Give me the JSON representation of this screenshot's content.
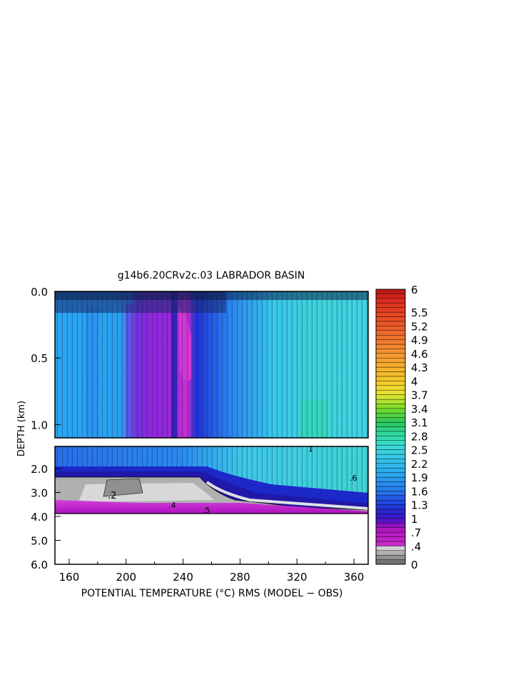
{
  "chart_data": {
    "type": "heatmap",
    "title": "g14b6.20CRv2c.03 LABRADOR BASIN",
    "xlabel": "POTENTIAL TEMPERATURE (°C) RMS (MODEL − OBS)",
    "ylabel": "DEPTH (km)",
    "x_range": [
      150,
      370
    ],
    "x_ticks": [
      "160",
      "200",
      "240",
      "280",
      "320",
      "360"
    ],
    "y_ticks_upper": [
      "0.0",
      "0.5",
      "1.0"
    ],
    "y_ticks_lower": [
      "2.0",
      "3.0",
      "4.0",
      "5.0",
      "6.0"
    ],
    "y_range_upper_km": [
      0.0,
      1.1
    ],
    "y_range_lower_km": [
      1.1,
      6.0
    ],
    "data_bottom_km": 3.9,
    "colorbar": {
      "min": 0,
      "max": 6,
      "labels": [
        "6",
        "5.5",
        "5.2",
        "4.9",
        "4.6",
        "4.3",
        "4",
        "3.7",
        "3.4",
        "3.1",
        "2.8",
        "2.5",
        "2.2",
        "1.9",
        "1.6",
        "1.3",
        "1",
        ".7",
        ".4",
        "0"
      ],
      "label_values": [
        6,
        5.5,
        5.2,
        4.9,
        4.6,
        4.3,
        4,
        3.7,
        3.4,
        3.1,
        2.8,
        2.5,
        2.2,
        1.9,
        1.6,
        1.3,
        1,
        0.7,
        0.4,
        0
      ]
    },
    "contour_labels": [
      ".2",
      ".4",
      ".5",
      ".6",
      "1"
    ],
    "colors": {
      "purple_magenta": "#c020d0",
      "blue": "#1e50e0",
      "light_blue": "#2aa0f0",
      "cyan": "#40d8e8",
      "teal_green": "#30d8b0",
      "gray": "#a8a8a8",
      "light_gray": "#d0d0d0"
    }
  }
}
